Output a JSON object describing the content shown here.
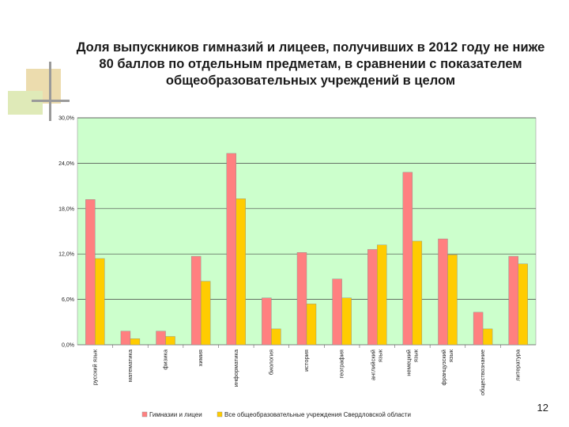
{
  "slide": {
    "title": "Доля выпускников гимназий и лицеев, получивших в 2012 году не ниже 80 баллов по отдельным предметам,  в сравнении  с показателем  общеобразовательных учреждений в целом",
    "number": "12"
  },
  "colors": {
    "plot_bg": "#ccffcc",
    "series1": "#ff8080",
    "series2": "#ffcc00",
    "deco_tan": "#e8d8a8",
    "deco_green": "#d8e8b0",
    "deco_gray": "#999999"
  },
  "chart_data": {
    "type": "bar",
    "title": "",
    "xlabel": "",
    "ylabel": "",
    "ylim": [
      0,
      30
    ],
    "yticks": [
      0,
      6,
      12,
      18,
      24,
      30
    ],
    "ytick_labels": [
      "0,0%",
      "6,0%",
      "12,0%",
      "18,0%",
      "24,0%",
      "30,0%"
    ],
    "grid": "horizontal",
    "legend_position": "bottom",
    "categories": [
      [
        "русский язык"
      ],
      [
        "математика"
      ],
      [
        "физика"
      ],
      [
        "химия"
      ],
      [
        "информатика"
      ],
      [
        "биология"
      ],
      [
        "история"
      ],
      [
        "география"
      ],
      [
        "английский",
        "язык"
      ],
      [
        "немецкий",
        "язык"
      ],
      [
        "французский",
        "язык"
      ],
      [
        "обществознание"
      ],
      [
        "литература"
      ]
    ],
    "series": [
      {
        "name": "Гимназии и лицеи",
        "values": [
          19.2,
          1.8,
          1.8,
          11.7,
          25.3,
          6.2,
          12.2,
          8.7,
          12.6,
          22.8,
          14.0,
          4.3,
          11.7
        ]
      },
      {
        "name": "Все общеобразовательные учреждения Свердловской области",
        "values": [
          11.4,
          0.8,
          1.1,
          8.4,
          19.3,
          2.1,
          5.4,
          6.2,
          13.2,
          13.7,
          11.9,
          2.1,
          10.7
        ]
      }
    ]
  }
}
